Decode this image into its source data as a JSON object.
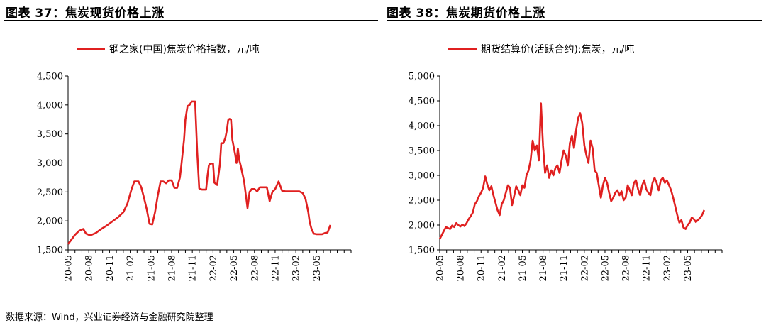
{
  "titles": {
    "left": "图表 37：焦炭现货价格上涨",
    "right": "图表 38：焦炭期货价格上涨"
  },
  "source": "数据来源：Wind，兴业证券经济与金融研究院整理",
  "chart_data": [
    {
      "type": "line",
      "legend": "钢之家(中国)焦炭价格指数，元/吨",
      "legend_position": "top-center",
      "grid": false,
      "color": "#e02020",
      "ylim": [
        1500,
        4500
      ],
      "yticks": [
        1500,
        2000,
        2500,
        3000,
        3500,
        4000,
        4500
      ],
      "ytick_labels": [
        "1,500",
        "2,000",
        "2,500",
        "3,000",
        "3,500",
        "4,000",
        "4,500"
      ],
      "xlim": [
        0,
        41
      ],
      "xtick_positions": [
        0,
        3,
        6,
        9,
        12,
        15,
        18,
        21,
        24,
        27,
        30,
        33,
        36
      ],
      "xtick_labels": [
        "20-05",
        "20-08",
        "20-11",
        "21-02",
        "21-05",
        "21-08",
        "21-11",
        "22-02",
        "22-05",
        "22-08",
        "22-11",
        "23-02",
        "23-05"
      ],
      "x": [
        0,
        0.5,
        1,
        1.6,
        2.2,
        2.6,
        3.2,
        4,
        4.8,
        5.6,
        6.4,
        7.2,
        8,
        8.6,
        9.2,
        9.6,
        10.2,
        10.6,
        11,
        11.4,
        11.8,
        12.2,
        12.6,
        13,
        13.4,
        13.8,
        14.2,
        14.6,
        15,
        15.4,
        15.8,
        16.2,
        16.4,
        16.8,
        17,
        17.3,
        17.6,
        17.9,
        18.1,
        18.4,
        18.7,
        19,
        19.4,
        19.6,
        20,
        20.2,
        20.4,
        20.6,
        21,
        21.2,
        21.6,
        22,
        22.2,
        22.5,
        22.8,
        23,
        23.2,
        23.4,
        23.6,
        23.8,
        24.2,
        24.4,
        24.6,
        24.8,
        25,
        25.5,
        26,
        26.3,
        26.6,
        27,
        27.4,
        27.8,
        28.4,
        28.8,
        29.2,
        29.6,
        30,
        30.5,
        31,
        31.5,
        32,
        32.5,
        33,
        33.5,
        34,
        34.4,
        34.8,
        35,
        35.3,
        35.6,
        36,
        36.4,
        36.8,
        37.2,
        37.6,
        38
      ],
      "y": [
        1600,
        1680,
        1760,
        1830,
        1860,
        1780,
        1750,
        1790,
        1860,
        1920,
        1990,
        2060,
        2150,
        2300,
        2550,
        2680,
        2680,
        2580,
        2400,
        2200,
        1950,
        1940,
        2150,
        2440,
        2680,
        2680,
        2650,
        2700,
        2700,
        2570,
        2570,
        2750,
        2950,
        3400,
        3750,
        3980,
        4000,
        4060,
        4060,
        4060,
        3200,
        2560,
        2540,
        2540,
        2540,
        2780,
        2960,
        2990,
        2990,
        2660,
        2620,
        2980,
        3340,
        3340,
        3440,
        3560,
        3740,
        3760,
        3750,
        3400,
        3150,
        3000,
        3250,
        3050,
        2960,
        2680,
        2220,
        2500,
        2550,
        2550,
        2510,
        2580,
        2580,
        2580,
        2340,
        2500,
        2550,
        2680,
        2520,
        2510,
        2510,
        2510,
        2510,
        2510,
        2480,
        2380,
        2150,
        1980,
        1850,
        1780,
        1770,
        1770,
        1770,
        1790,
        1800,
        1930
      ]
    },
    {
      "type": "line",
      "legend": "期货结算价(活跃合约):焦炭，元/吨",
      "legend_position": "top-center",
      "grid": false,
      "color": "#e02020",
      "ylim": [
        1500,
        5000
      ],
      "yticks": [
        1500,
        2000,
        2500,
        3000,
        3500,
        4000,
        4500,
        5000
      ],
      "ytick_labels": [
        "1,500",
        "2,000",
        "2,500",
        "3,000",
        "3,500",
        "4,000",
        "4,500",
        "5,000"
      ],
      "xlim": [
        0,
        41
      ],
      "xtick_positions": [
        0,
        3,
        6,
        9,
        12,
        15,
        18,
        21,
        24,
        27,
        30,
        33,
        36
      ],
      "xtick_labels": [
        "20-05",
        "20-08",
        "20-11",
        "21-02",
        "21-05",
        "21-08",
        "21-11",
        "22-02",
        "22-05",
        "22-08",
        "22-11",
        "23-02",
        "23-05"
      ],
      "x": [
        0,
        0.3,
        0.6,
        0.9,
        1.2,
        1.5,
        1.8,
        2.1,
        2.4,
        2.7,
        3,
        3.3,
        3.6,
        3.9,
        4.2,
        4.5,
        4.8,
        5.1,
        5.4,
        5.7,
        6,
        6.3,
        6.6,
        6.9,
        7.2,
        7.5,
        7.8,
        8.1,
        8.4,
        8.7,
        9,
        9.3,
        9.6,
        9.9,
        10.2,
        10.5,
        10.8,
        11.1,
        11.4,
        11.7,
        12,
        12.3,
        12.6,
        12.9,
        13.2,
        13.5,
        13.8,
        14.1,
        14.4,
        14.7,
        15,
        15.3,
        15.6,
        15.9,
        16.2,
        16.5,
        16.8,
        17.1,
        17.4,
        17.7,
        18,
        18.3,
        18.6,
        18.9,
        19.2,
        19.5,
        19.8,
        20.1,
        20.4,
        20.7,
        21,
        21.3,
        21.6,
        21.9,
        22.2,
        22.5,
        22.8,
        23.1,
        23.4,
        23.7,
        24,
        24.3,
        24.6,
        24.9,
        25.2,
        25.5,
        25.8,
        26.1,
        26.4,
        26.7,
        27,
        27.3,
        27.6,
        27.9,
        28.2,
        28.5,
        28.8,
        29.1,
        29.4,
        29.7,
        30,
        30.3,
        30.6,
        30.9,
        31.2,
        31.5,
        31.8,
        32.1,
        32.4,
        32.7,
        33,
        33.3,
        33.6,
        33.9,
        34.2,
        34.5,
        34.8,
        35.1,
        35.4,
        35.7,
        36,
        36.3,
        36.6,
        36.9,
        37.2,
        37.5,
        37.8,
        38.1,
        38.4
      ],
      "y": [
        1720,
        1800,
        1880,
        1960,
        1940,
        1920,
        1990,
        1960,
        2040,
        2000,
        1970,
        2010,
        1980,
        2040,
        2120,
        2180,
        2250,
        2420,
        2480,
        2580,
        2650,
        2750,
        2980,
        2820,
        2700,
        2780,
        2600,
        2450,
        2300,
        2200,
        2420,
        2500,
        2650,
        2800,
        2750,
        2400,
        2580,
        2780,
        2700,
        2600,
        2800,
        2750,
        3000,
        3100,
        3300,
        3700,
        3500,
        3600,
        3300,
        4450,
        3600,
        3050,
        3200,
        2950,
        3100,
        3000,
        3150,
        3200,
        3050,
        3300,
        3500,
        3400,
        3200,
        3650,
        3800,
        3550,
        3900,
        4150,
        4250,
        4050,
        3600,
        3400,
        3250,
        3700,
        3550,
        3100,
        3050,
        2800,
        2550,
        2800,
        2950,
        2850,
        2650,
        2480,
        2550,
        2650,
        2700,
        2600,
        2680,
        2500,
        2550,
        2800,
        2700,
        2600,
        2850,
        2900,
        2720,
        2600,
        2800,
        2900,
        2720,
        2650,
        2600,
        2850,
        2950,
        2850,
        2700,
        2900,
        2950,
        2850,
        2900,
        2800,
        2700,
        2550,
        2380,
        2200,
        2050,
        2100,
        1950,
        1920,
        2000,
        2050,
        2150,
        2120,
        2060,
        2100,
        2140,
        2200,
        2300
      ]
    }
  ]
}
